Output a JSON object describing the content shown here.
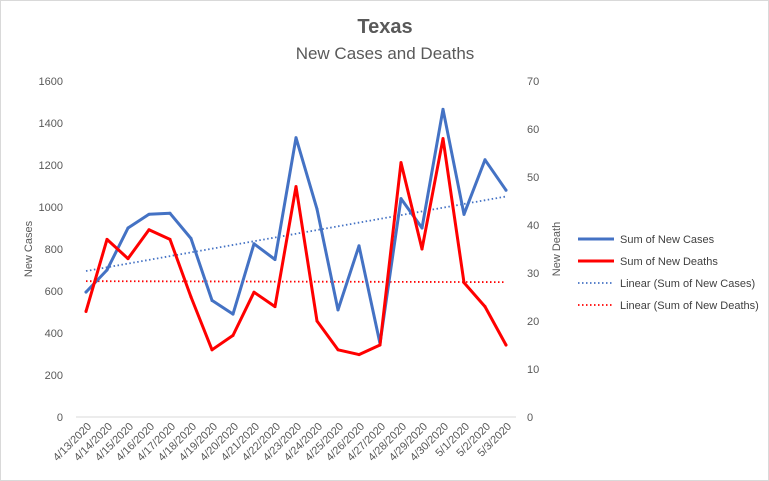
{
  "chart_data": {
    "type": "line",
    "title": "Texas",
    "subtitle": "New Cases and Deaths",
    "ylabel_left": "New Cases",
    "ylabel_right": "New Death",
    "ylim_left": [
      0,
      1600
    ],
    "ylim_right": [
      0,
      70
    ],
    "yticks_left": [
      0,
      200,
      400,
      600,
      800,
      1000,
      1200,
      1400,
      1600
    ],
    "yticks_right": [
      0,
      10,
      20,
      30,
      40,
      50,
      60,
      70
    ],
    "categories": [
      "4/13/2020",
      "4/14/2020",
      "4/15/2020",
      "4/16/2020",
      "4/17/2020",
      "4/18/2020",
      "4/19/2020",
      "4/20/2020",
      "4/21/2020",
      "4/22/2020",
      "4/23/2020",
      "4/24/2020",
      "4/25/2020",
      "4/26/2020",
      "4/27/2020",
      "4/28/2020",
      "4/29/2020",
      "4/30/2020",
      "5/1/2020",
      "5/2/2020",
      "5/3/2020"
    ],
    "series": [
      {
        "name": "Sum of New Cases",
        "axis": "left",
        "color": "#4472C4",
        "values": [
          595,
          700,
          900,
          965,
          970,
          850,
          555,
          490,
          825,
          750,
          1330,
          990,
          510,
          815,
          350,
          1040,
          900,
          1465,
          965,
          1225,
          1080
        ]
      },
      {
        "name": "Sum of New Deaths",
        "axis": "right",
        "color": "#FF0000",
        "values": [
          22,
          37,
          33,
          39,
          37,
          25,
          14,
          17,
          26,
          23,
          48,
          20,
          14,
          13,
          15,
          53,
          35,
          58,
          28,
          23,
          15
        ]
      }
    ],
    "trendlines": [
      {
        "name": "Linear (Sum of New Cases)",
        "axis": "left",
        "color": "#4472C4",
        "start": 695,
        "end": 1050
      },
      {
        "name": "Linear (Sum of New Deaths)",
        "axis": "right",
        "color": "#FF0000",
        "start": 28.3,
        "end": 28.1
      }
    ],
    "legend": [
      {
        "label": "Sum of New Cases",
        "color": "#4472C4",
        "style": "solid"
      },
      {
        "label": "Sum of New Deaths",
        "color": "#FF0000",
        "style": "solid"
      },
      {
        "label": "Linear (Sum of New Cases)",
        "color": "#4472C4",
        "style": "dotted"
      },
      {
        "label": "Linear (Sum of New Deaths)",
        "color": "#FF0000",
        "style": "dotted"
      }
    ],
    "legend_position": "right",
    "gridlines": false
  }
}
